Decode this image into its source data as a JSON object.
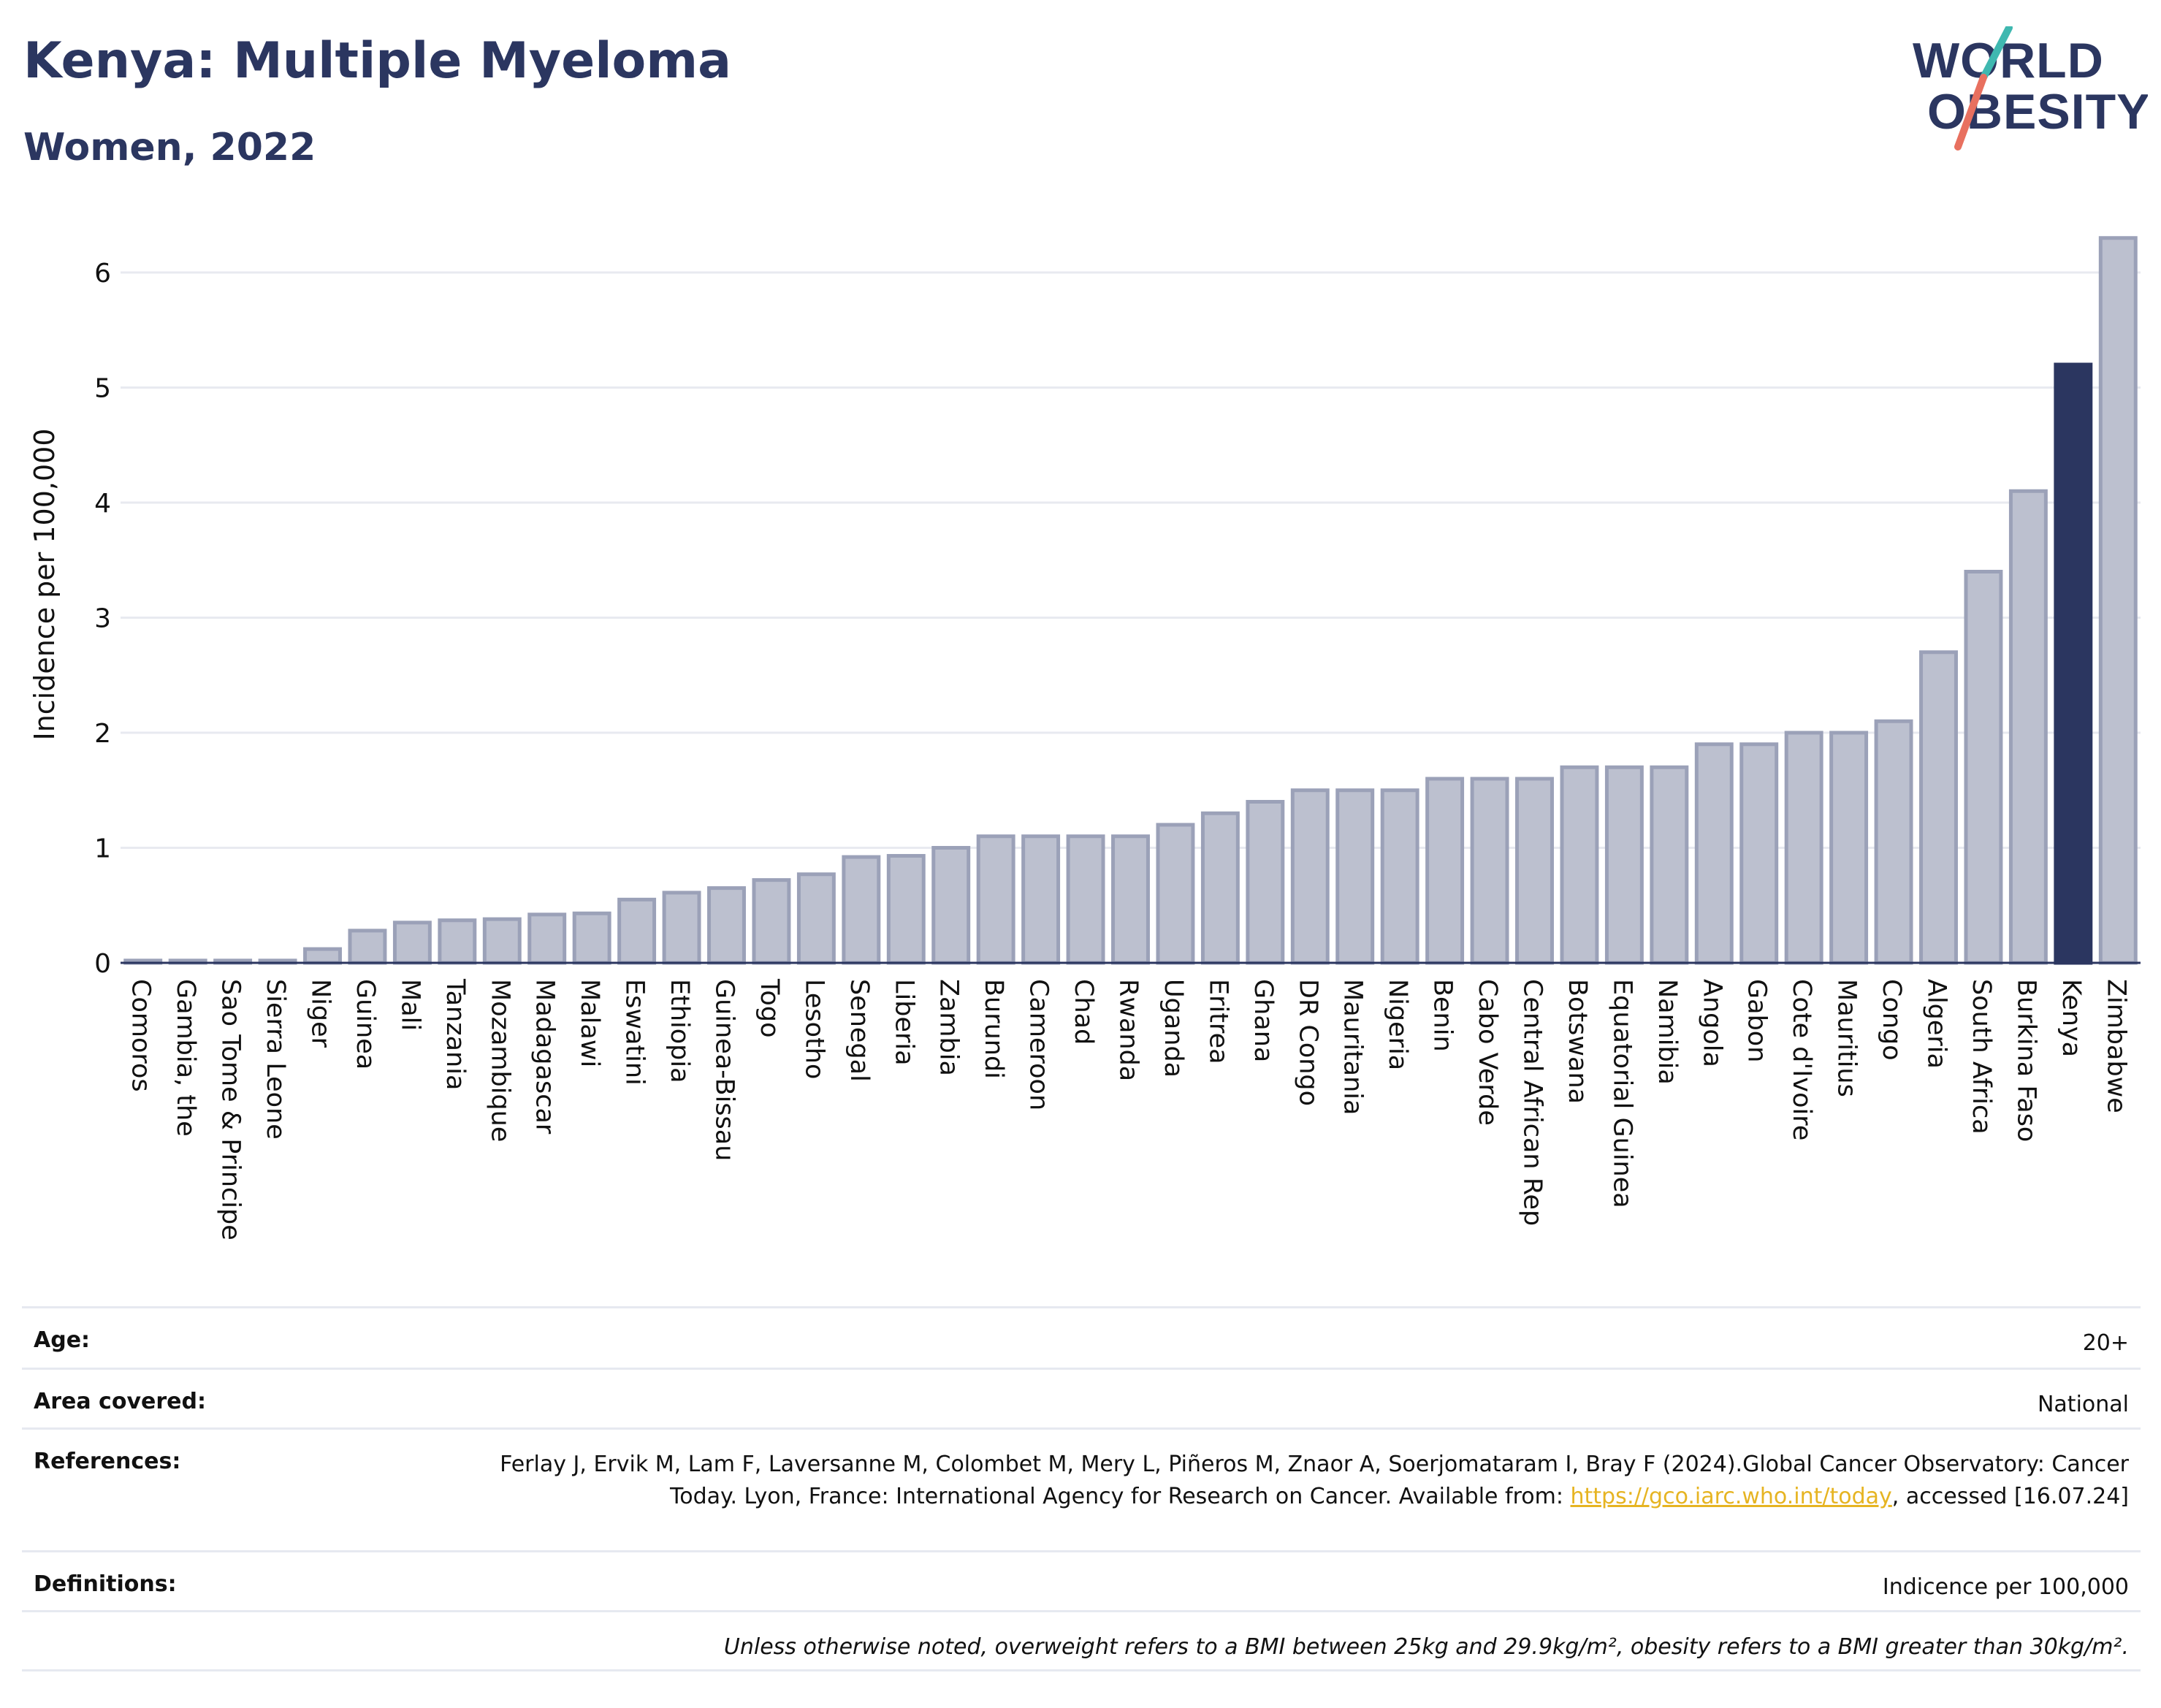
{
  "header": {
    "title": "Kenya: Multiple Myeloma",
    "subtitle": "Women, 2022"
  },
  "logo": {
    "line1": "WORLD",
    "line2": "OBESITY",
    "colors": {
      "text": "#2b3660",
      "slash_teal": "#3fb8b0",
      "slash_coral": "#e8705f"
    }
  },
  "colors": {
    "bar_default": "#bcc0cf",
    "bar_default_stroke": "#9ba1b8",
    "bar_highlight": "#2b3660",
    "grid": "#e8eaf0",
    "axis": "#2b3660"
  },
  "chart_data": {
    "type": "bar",
    "ylabel": "Incidence per 100,000",
    "xlabel": "",
    "ylim": [
      0,
      6.4
    ],
    "yticks": [
      0,
      1,
      2,
      3,
      4,
      5,
      6
    ],
    "grid": true,
    "highlight": "Kenya",
    "categories": [
      "Comoros",
      "Gambia, the",
      "Sao Tome & Principe",
      "Sierra Leone",
      "Niger",
      "Guinea",
      "Mali",
      "Tanzania",
      "Mozambique",
      "Madagascar",
      "Malawi",
      "Eswatini",
      "Ethiopia",
      "Guinea-Bissau",
      "Togo",
      "Lesotho",
      "Senegal",
      "Liberia",
      "Zambia",
      "Burundi",
      "Cameroon",
      "Chad",
      "Rwanda",
      "Uganda",
      "Eritrea",
      "Ghana",
      "DR Congo",
      "Mauritania",
      "Nigeria",
      "Benin",
      "Cabo Verde",
      "Central African Rep",
      "Botswana",
      "Equatorial Guinea",
      "Namibia",
      "Angola",
      "Gabon",
      "Cote d'Ivoire",
      "Mauritius",
      "Congo",
      "Algeria",
      "South Africa",
      "Burkina Faso",
      "Kenya",
      "Zimbabwe"
    ],
    "values": [
      0.02,
      0.02,
      0.02,
      0.02,
      0.12,
      0.28,
      0.35,
      0.37,
      0.38,
      0.42,
      0.43,
      0.55,
      0.61,
      0.65,
      0.72,
      0.77,
      0.92,
      0.93,
      1.0,
      1.1,
      1.1,
      1.1,
      1.1,
      1.2,
      1.3,
      1.4,
      1.5,
      1.5,
      1.5,
      1.6,
      1.6,
      1.6,
      1.7,
      1.7,
      1.7,
      1.9,
      1.9,
      2.0,
      2.0,
      2.1,
      2.7,
      3.4,
      4.1,
      5.2,
      6.3
    ]
  },
  "meta": {
    "age": {
      "label": "Age:",
      "value": "20+"
    },
    "area": {
      "label": "Area covered:",
      "value": "National"
    },
    "references": {
      "label": "References:",
      "text_before": "Ferlay J, Ervik M, Lam F, Laversanne M, Colombet M, Mery L, Piñeros M, Znaor A, Soerjomataram I, Bray F (2024).Global Cancer Observatory: Cancer Today. Lyon, France: International Agency for Research on Cancer. Available from: ",
      "link": "https://gco.iarc.who.int/today",
      "text_after": ", accessed [16.07.24]"
    },
    "definitions": {
      "label": "Definitions:",
      "value": "Indicence per 100,000"
    },
    "note": "Unless otherwise noted, overweight refers to a BMI between 25kg and 29.9kg/m², obesity refers to a BMI greater than 30kg/m²."
  }
}
